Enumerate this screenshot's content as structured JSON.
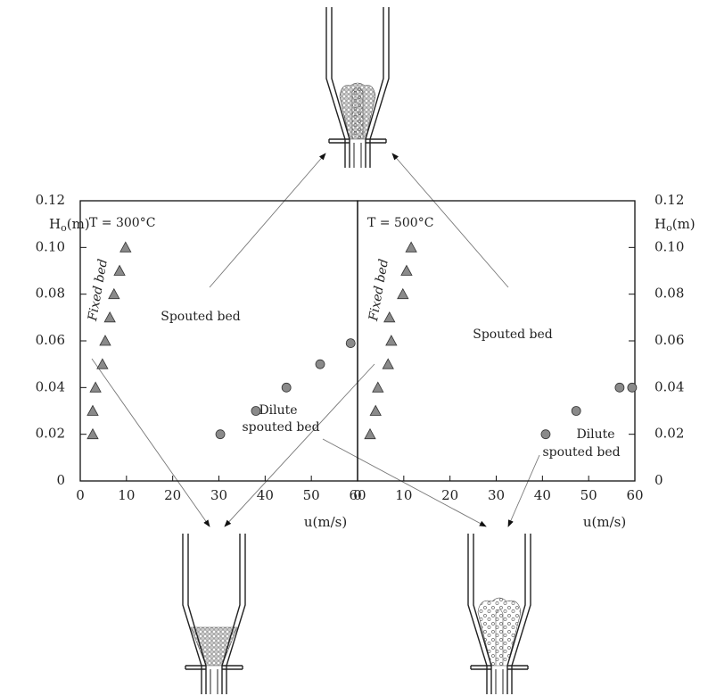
{
  "chart_data": [
    {
      "type": "scatter",
      "annotations": {
        "temperature": "T = 300°C",
        "fixed": "Fixed bed",
        "spouted": "Spouted bed",
        "dilute": [
          "Dilute",
          "spouted bed"
        ]
      },
      "xlabel": "u(m/s)",
      "ylabel": "H",
      "ylabel_sub": "o",
      "ylabel_unit": "(m)",
      "xlim": [
        0,
        60
      ],
      "ylim": [
        0,
        0.12
      ],
      "xticks": [
        0,
        10,
        20,
        30,
        40,
        50,
        60
      ],
      "yticks": [
        0,
        0.02,
        0.04,
        0.06,
        0.08,
        {
          "value": 0.1,
          "label": "0.10"
        },
        0.12
      ],
      "series": [
        {
          "marker": "triangle",
          "color": "#8a8a8a",
          "x": [
            2.7,
            2.7,
            3.3,
            4.8,
            5.4,
            6.4,
            7.3,
            8.5,
            9.8
          ],
          "values": [
            0.02,
            0.03,
            0.04,
            0.05,
            0.06,
            0.07,
            0.08,
            0.09,
            0.1
          ]
        },
        {
          "marker": "circle",
          "color": "#8a8a8a",
          "x": [
            30.3,
            38.0,
            44.6,
            51.9,
            58.5
          ],
          "values": [
            0.02,
            0.03,
            0.04,
            0.05,
            0.059
          ]
        }
      ]
    },
    {
      "type": "scatter",
      "annotations": {
        "temperature": "T = 500°C",
        "fixed": "Fixed bed",
        "spouted": "Spouted bed",
        "dilute": [
          "Dilute",
          "spouted bed"
        ]
      },
      "xlabel": "u(m/s)",
      "ylabel": "H",
      "ylabel_sub": "o",
      "ylabel_unit": "(m)",
      "xlim": [
        0,
        60
      ],
      "ylim": [
        0,
        0.12
      ],
      "xticks": [
        0,
        10,
        20,
        30,
        40,
        50,
        60
      ],
      "yticks": [
        0,
        0.02,
        0.04,
        0.06,
        0.08,
        {
          "value": 0.1,
          "label": "0.10"
        },
        0.12
      ],
      "series": [
        {
          "marker": "triangle",
          "color": "#8a8a8a",
          "x": [
            2.7,
            3.9,
            4.4,
            6.6,
            7.3,
            6.9,
            9.8,
            10.6,
            11.6
          ],
          "values": [
            0.02,
            0.03,
            0.04,
            0.05,
            0.06,
            0.07,
            0.08,
            0.09,
            0.1
          ]
        },
        {
          "marker": "circle",
          "color": "#8a8a8a",
          "x": [
            40.7,
            47.3,
            56.7,
            59.4
          ],
          "values": [
            0.02,
            0.03,
            0.04,
            0.04
          ]
        }
      ]
    }
  ]
}
